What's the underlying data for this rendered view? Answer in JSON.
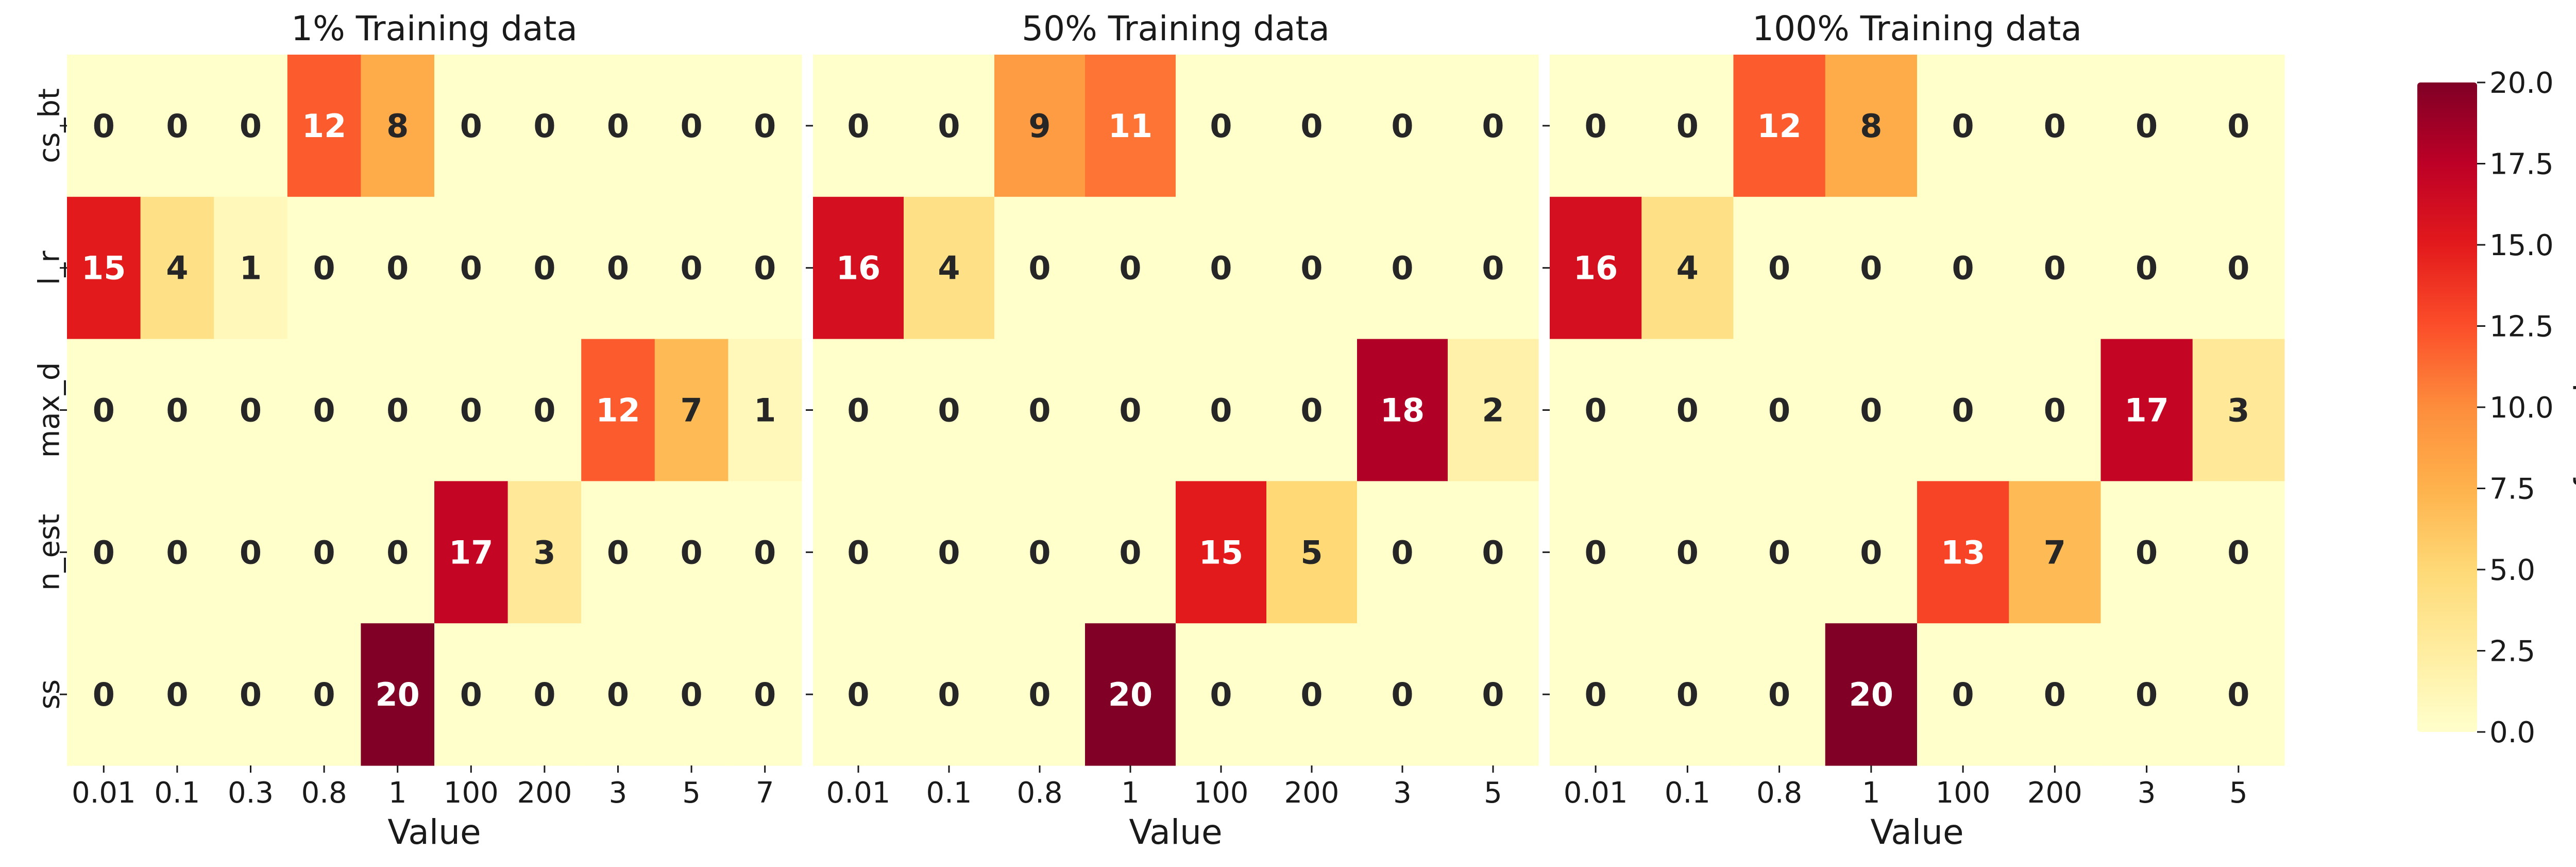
{
  "chart_data": [
    {
      "type": "heatmap",
      "title": "1% Training data",
      "xlabel": "Value",
      "ylabel": "",
      "x_categories": [
        "0.01",
        "0.1",
        "0.3",
        "0.8",
        "1",
        "100",
        "200",
        "3",
        "5",
        "7"
      ],
      "y_categories": [
        "cs_bt",
        "l_r",
        "max_d",
        "n_est",
        "ss"
      ],
      "values": [
        [
          0,
          0,
          0,
          12,
          8,
          0,
          0,
          0,
          0,
          0
        ],
        [
          15,
          4,
          1,
          0,
          0,
          0,
          0,
          0,
          0,
          0
        ],
        [
          0,
          0,
          0,
          0,
          0,
          0,
          0,
          12,
          7,
          1
        ],
        [
          0,
          0,
          0,
          0,
          0,
          17,
          3,
          0,
          0,
          0
        ],
        [
          0,
          0,
          0,
          0,
          20,
          0,
          0,
          0,
          0,
          0
        ]
      ]
    },
    {
      "type": "heatmap",
      "title": "50% Training data",
      "xlabel": "Value",
      "ylabel": "",
      "x_categories": [
        "0.01",
        "0.1",
        "0.8",
        "1",
        "100",
        "200",
        "3",
        "5"
      ],
      "y_categories": [
        "cs_bt",
        "l_r",
        "max_d",
        "n_est",
        "ss"
      ],
      "values": [
        [
          0,
          0,
          9,
          11,
          0,
          0,
          0,
          0
        ],
        [
          16,
          4,
          0,
          0,
          0,
          0,
          0,
          0
        ],
        [
          0,
          0,
          0,
          0,
          0,
          0,
          18,
          2
        ],
        [
          0,
          0,
          0,
          0,
          15,
          5,
          0,
          0
        ],
        [
          0,
          0,
          0,
          20,
          0,
          0,
          0,
          0
        ]
      ]
    },
    {
      "type": "heatmap",
      "title": "100% Training data",
      "xlabel": "Value",
      "ylabel": "",
      "x_categories": [
        "0.01",
        "0.1",
        "0.8",
        "1",
        "100",
        "200",
        "3",
        "5"
      ],
      "y_categories": [
        "cs_bt",
        "l_r",
        "max_d",
        "n_est",
        "ss"
      ],
      "values": [
        [
          0,
          0,
          12,
          8,
          0,
          0,
          0,
          0
        ],
        [
          16,
          4,
          0,
          0,
          0,
          0,
          0,
          0
        ],
        [
          0,
          0,
          0,
          0,
          0,
          0,
          17,
          3
        ],
        [
          0,
          0,
          0,
          0,
          13,
          7,
          0,
          0
        ],
        [
          0,
          0,
          0,
          20,
          0,
          0,
          0,
          0
        ]
      ]
    }
  ],
  "colorbar": {
    "label": "Frequency",
    "range": [
      0,
      20
    ],
    "ticks": [
      "0.0",
      "2.5",
      "5.0",
      "7.5",
      "10.0",
      "12.5",
      "15.0",
      "17.5",
      "20.0"
    ],
    "colormap": "YlOrRd",
    "colors": [
      "#ffffcc",
      "#ffeda0",
      "#fed976",
      "#feb24c",
      "#fd8d3c",
      "#fc4e2a",
      "#e31a1c",
      "#bd0026",
      "#800026"
    ]
  }
}
